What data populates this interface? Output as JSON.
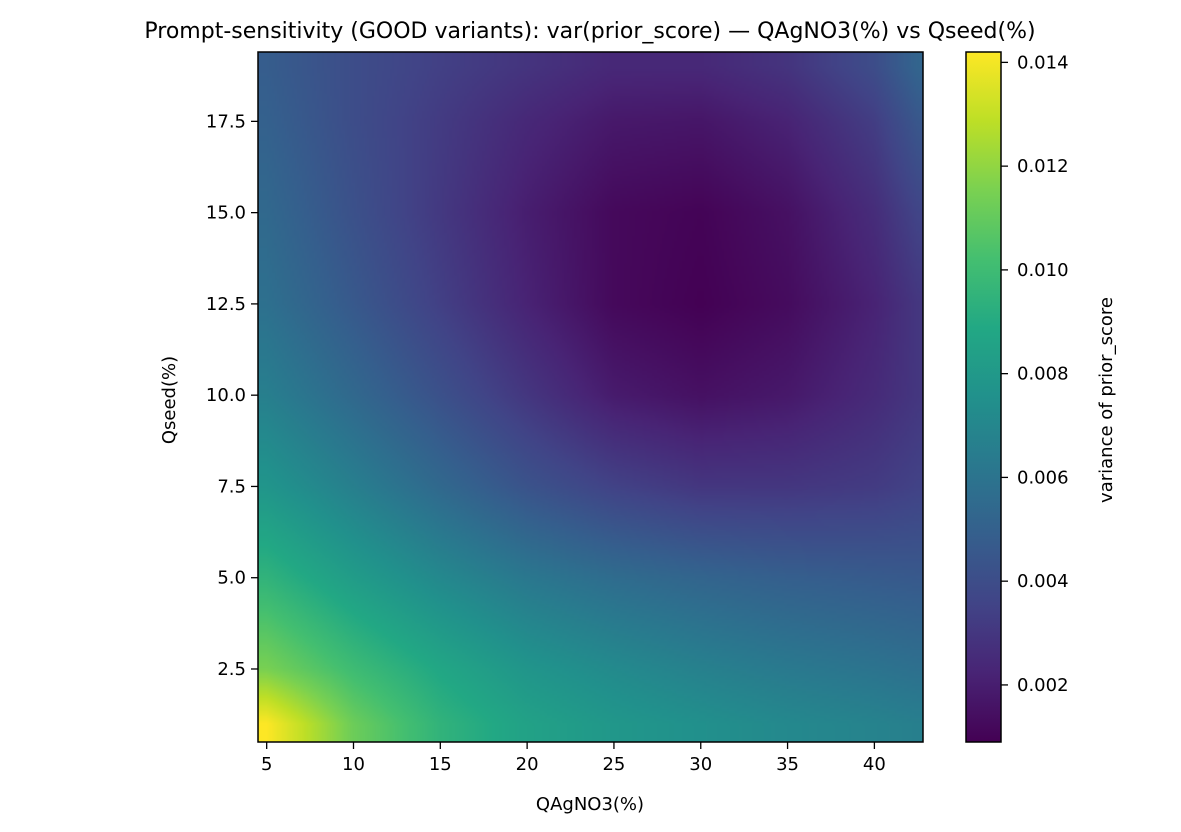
{
  "chart_data": {
    "type": "heatmap",
    "title": "Prompt-sensitivity (GOOD variants): var(prior_score) — QAgNO3(%) vs Qseed(%)",
    "xlabel": "QAgNO3(%)",
    "ylabel": "Qseed(%)",
    "xlim": [
      4.5,
      42.8
    ],
    "ylim": [
      0.5,
      19.4
    ],
    "xticks": [
      5,
      10,
      15,
      20,
      25,
      30,
      35,
      40
    ],
    "xtick_labels": [
      "5",
      "10",
      "15",
      "20",
      "25",
      "30",
      "35",
      "40"
    ],
    "yticks": [
      2.5,
      5.0,
      7.5,
      10.0,
      12.5,
      15.0,
      17.5
    ],
    "ytick_labels": [
      "2.5",
      "5.0",
      "7.5",
      "10.0",
      "12.5",
      "15.0",
      "17.5"
    ],
    "colormap": "viridis",
    "colorbar": {
      "label": "variance of prior_score",
      "min": 0.0009,
      "max": 0.0142,
      "ticks": [
        0.002,
        0.004,
        0.006,
        0.008,
        0.01,
        0.012,
        0.014
      ],
      "tick_labels": [
        "0.002",
        "0.004",
        "0.006",
        "0.008",
        "0.010",
        "0.012",
        "0.014"
      ]
    },
    "x": [
      5,
      10,
      15,
      20,
      25,
      30,
      35,
      40,
      42.5
    ],
    "y": [
      1,
      2.5,
      5,
      7.5,
      10,
      12.5,
      15,
      17.5,
      19
    ],
    "z": [
      [
        0.0142,
        0.0112,
        0.0095,
        0.0085,
        0.0079,
        0.0075,
        0.0071,
        0.0068,
        0.0066
      ],
      [
        0.0115,
        0.01,
        0.0088,
        0.0078,
        0.0072,
        0.0067,
        0.0063,
        0.006,
        0.0058
      ],
      [
        0.0095,
        0.0082,
        0.0071,
        0.0062,
        0.0056,
        0.0052,
        0.0049,
        0.0047,
        0.0046
      ],
      [
        0.0078,
        0.0066,
        0.0054,
        0.0043,
        0.0035,
        0.003,
        0.003,
        0.0032,
        0.0035
      ],
      [
        0.0066,
        0.0054,
        0.0042,
        0.003,
        0.0019,
        0.0015,
        0.0018,
        0.0025,
        0.003
      ],
      [
        0.0058,
        0.0046,
        0.0034,
        0.0022,
        0.0012,
        0.0009,
        0.0013,
        0.0022,
        0.003
      ],
      [
        0.0054,
        0.0042,
        0.0031,
        0.002,
        0.0012,
        0.001,
        0.0015,
        0.0026,
        0.0036
      ],
      [
        0.005,
        0.004,
        0.0032,
        0.0024,
        0.0018,
        0.0017,
        0.0022,
        0.0033,
        0.0045
      ],
      [
        0.0048,
        0.004,
        0.0034,
        0.0029,
        0.0024,
        0.0024,
        0.0029,
        0.004,
        0.0052
      ]
    ],
    "grid": false,
    "legend": "none"
  }
}
